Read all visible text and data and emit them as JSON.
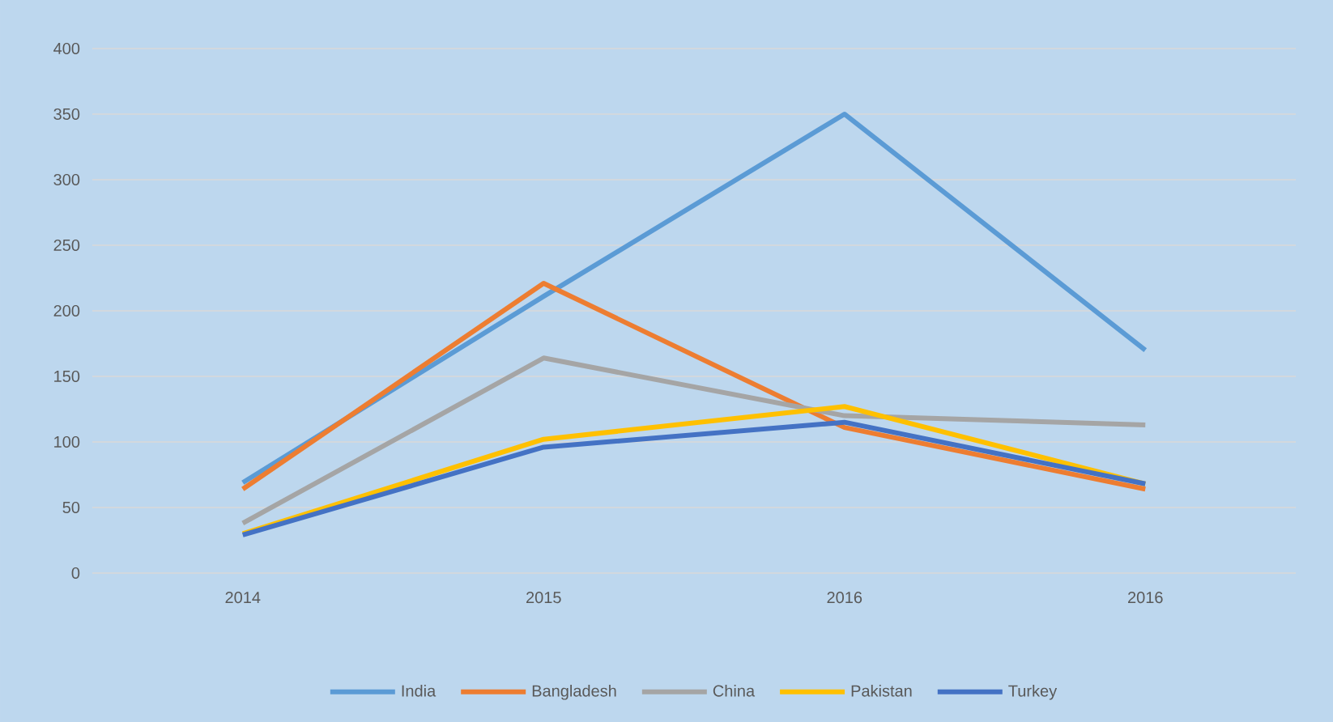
{
  "chart_data": {
    "type": "line",
    "categories": [
      "2014",
      "2015",
      "2016",
      "2016"
    ],
    "series": [
      {
        "name": "India",
        "color": "#5b9bd5",
        "values": [
          69,
          211,
          350,
          170
        ]
      },
      {
        "name": "Bangladesh",
        "color": "#ed7d31",
        "values": [
          64,
          221,
          111,
          64
        ]
      },
      {
        "name": "China",
        "color": "#a5a5a5",
        "values": [
          38,
          164,
          120,
          113
        ]
      },
      {
        "name": "Pakistan",
        "color": "#ffc000",
        "values": [
          30,
          102,
          127,
          68
        ]
      },
      {
        "name": "Turkey",
        "color": "#4472c4",
        "values": [
          29,
          96,
          115,
          68
        ]
      }
    ],
    "ylim": [
      0,
      400
    ],
    "yticks": [
      0,
      50,
      100,
      150,
      200,
      250,
      300,
      350,
      400
    ],
    "grid": "y",
    "legend": "bottom",
    "marker": "none",
    "line_style": "solid"
  }
}
